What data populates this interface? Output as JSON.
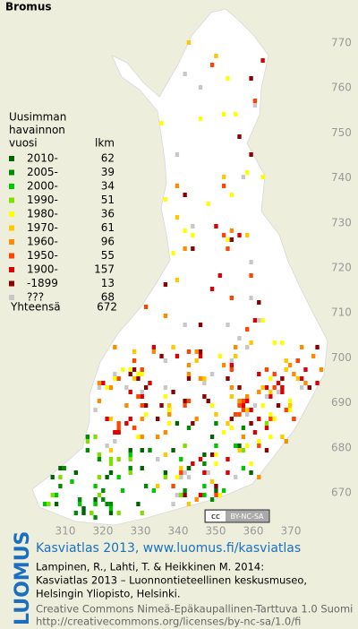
{
  "title": "Bromus",
  "legend": {
    "header": [
      "Uusimman",
      "havainnon",
      "vuosi"
    ],
    "count_header": "lkm",
    "rows": [
      {
        "label": "2010-",
        "count": 62,
        "color": "#006400"
      },
      {
        "label": "2005-",
        "count": 39,
        "color": "#008c00"
      },
      {
        "label": "2000-",
        "count": 34,
        "color": "#00c800"
      },
      {
        "label": "1990-",
        "count": 51,
        "color": "#7fe000"
      },
      {
        "label": "1980-",
        "count": 36,
        "color": "#ffff00"
      },
      {
        "label": "1970-",
        "count": 61,
        "color": "#ffc800"
      },
      {
        "label": "1960-",
        "count": 96,
        "color": "#ff8c00"
      },
      {
        "label": "1950-",
        "count": 55,
        "color": "#ff4600"
      },
      {
        "label": "1900-",
        "count": 157,
        "color": "#dc0000"
      },
      {
        "label": "-1899",
        "count": 13,
        "color": "#8c0000"
      },
      {
        "label": "???",
        "count": 68,
        "color": "#c8c8c8"
      }
    ],
    "total_label": "Yhteensä",
    "total": 672
  },
  "map": {
    "xticks": [
      310,
      320,
      330,
      340,
      350,
      360,
      370
    ],
    "yticks": [
      670,
      680,
      690,
      700,
      710,
      720,
      730,
      740,
      750,
      760,
      770
    ]
  },
  "license_badge": {
    "cc": "cc",
    "text": "BY-NC-SA"
  },
  "footer": {
    "brand": "LUOMUS",
    "heading": "Kasviatlas 2013, www.luomus.fi/kasviatlas",
    "citation": [
      "Lampinen, R., Lahti, T. & Heikkinen M. 2014:",
      "Kasviatlas 2013 – Luonnontieteellinen keskusmuseo,",
      "Helsingin Yliopisto, Helsinki."
    ],
    "license": [
      "Creative Commons Nimeä-Epäkaupallinen-Tarttuva 1.0 Suomi",
      "http://creativecommons.org/licenses/by-nc-sa/1.0/fi"
    ]
  }
}
